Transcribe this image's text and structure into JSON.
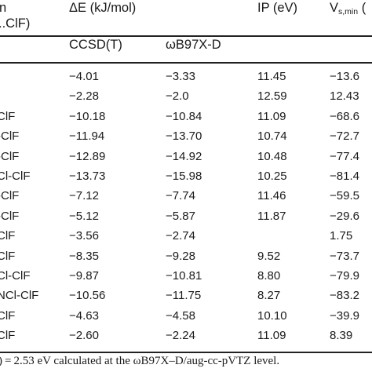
{
  "header": {
    "col0_line1": "n",
    "col0_line2": "..ClF)",
    "delta_e": "ΔE (kJ/mol)",
    "ccsd": "CCSD(T)",
    "wb97": "ωB97X-D",
    "ip": "IP (eV)",
    "vs_main": "V",
    "vs_sub": "s,min",
    "vs_tail": " ("
  },
  "rows": [
    {
      "label": "",
      "ccsd": "−4.01",
      "wb97": "−3.33",
      "ip": "11.45",
      "vs": "−13.6"
    },
    {
      "label": "",
      "ccsd": "−2.28",
      "wb97": "−2.0",
      "ip": "12.59",
      "vs": "12.43"
    },
    {
      "label": "ClF",
      "ccsd": "−10.18",
      "wb97": "−10.84",
      "ip": "11.09",
      "vs": "−68.6"
    },
    {
      "label": "-ClF",
      "ccsd": "−11.94",
      "wb97": "−13.70",
      "ip": "10.74",
      "vs": "−72.7"
    },
    {
      "label": "-ClF",
      "ccsd": "−12.89",
      "wb97": "−14.92",
      "ip": "10.48",
      "vs": "−77.4"
    },
    {
      "label": "Cl-ClF",
      "ccsd": "−13.73",
      "wb97": "−15.98",
      "ip": "10.25",
      "vs": "−81.4"
    },
    {
      "label": "-ClF",
      "ccsd": "−7.12",
      "wb97": "−7.74",
      "ip": "11.46",
      "vs": "−59.5"
    },
    {
      "label": "-ClF",
      "ccsd": "−5.12",
      "wb97": "−5.87",
      "ip": "11.87",
      "vs": "−29.6"
    },
    {
      "label": "ClF",
      "ccsd": "−3.56",
      "wb97": "−2.74",
      "ip": "",
      "vs": "1.75"
    },
    {
      "label": "ClF",
      "ccsd": "−8.35",
      "wb97": "−9.28",
      "ip": "9.52",
      "vs": "−73.7"
    },
    {
      "label": "Cl-ClF",
      "ccsd": "−9.87",
      "wb97": "−10.81",
      "ip": "8.80",
      "vs": "−79.9"
    },
    {
      "label": "NCl-ClF",
      "ccsd": "−10.56",
      "wb97": "−11.75",
      "ip": "8.27",
      "vs": "−83.2"
    },
    {
      "label": "ClF",
      "ccsd": "−4.63",
      "wb97": "−4.58",
      "ip": "10.10",
      "vs": "−39.9"
    },
    {
      "label": "ClF",
      "ccsd": "−2.60",
      "wb97": "−2.24",
      "ip": "11.09",
      "vs": "8.39"
    }
  ],
  "footnote": ") = 2.53 eV calculated at the ωB97X–D/aug-cc-pVTZ level."
}
